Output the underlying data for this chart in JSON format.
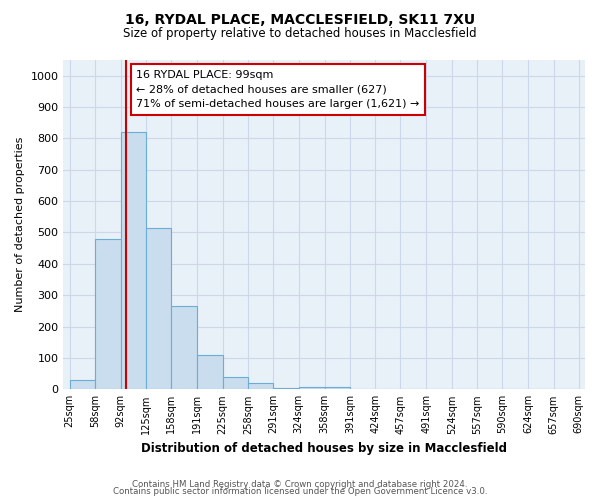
{
  "title1": "16, RYDAL PLACE, MACCLESFIELD, SK11 7XU",
  "title2": "Size of property relative to detached houses in Macclesfield",
  "xlabel": "Distribution of detached houses by size in Macclesfield",
  "ylabel": "Number of detached properties",
  "footnote1": "Contains HM Land Registry data © Crown copyright and database right 2024.",
  "footnote2": "Contains public sector information licensed under the Open Government Licence v3.0.",
  "bin_edges": [
    25,
    58,
    92,
    125,
    158,
    191,
    225,
    258,
    291,
    324,
    358,
    391,
    424,
    457,
    491,
    524,
    557,
    590,
    624,
    657,
    690
  ],
  "bar_heights": [
    30,
    480,
    820,
    515,
    265,
    110,
    38,
    20,
    5,
    8,
    8,
    0,
    0,
    0,
    0,
    0,
    0,
    0,
    0,
    0
  ],
  "bar_color": "#c9ddef",
  "bar_edge_color": "#6aaed6",
  "property_line_x": 99,
  "property_line_color": "#cc0000",
  "annotation_text": "16 RYDAL PLACE: 99sqm\n← 28% of detached houses are smaller (627)\n71% of semi-detached houses are larger (1,621) →",
  "annotation_box_color": "#cc0000",
  "ylim": [
    0,
    1050
  ],
  "yticks": [
    0,
    100,
    200,
    300,
    400,
    500,
    600,
    700,
    800,
    900,
    1000
  ],
  "grid_color": "#ccd8ea",
  "bg_color": "#e8f0f8"
}
